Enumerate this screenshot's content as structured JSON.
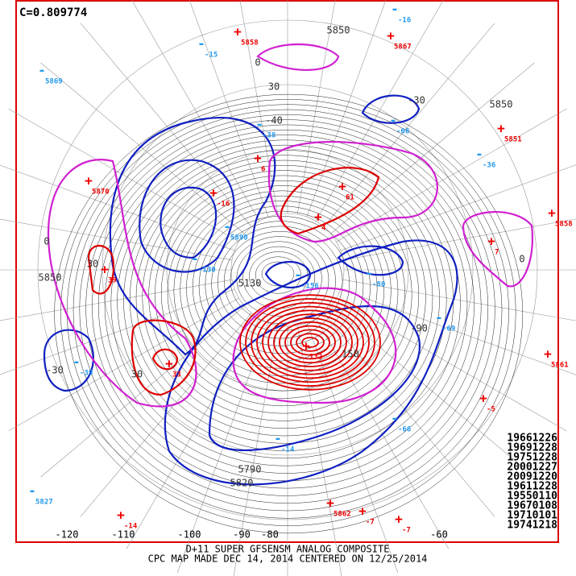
{
  "correlation": "C=0.809774",
  "analog_dates": [
    "19661226",
    "19691228",
    "19751228",
    "20001227",
    "20091220",
    "19611228",
    "19550110",
    "19670108",
    "19710101",
    "19741218"
  ],
  "longitudes": [
    "-120",
    "-110",
    "-100",
    "-90",
    "-80",
    "-60"
  ],
  "footer": [
    "D+11 SUPER GFSENSM ANALOG COMPOSITE",
    "CPC MAP MADE DEC 14, 2014 CENTERED ON 12/25/2014"
  ],
  "contour_labels": [
    "5850",
    "5850",
    "5850",
    "5790",
    "5820",
    "0",
    "0",
    "0",
    "30",
    "30",
    "30",
    "-30",
    "-30",
    "-40",
    "-90",
    "150",
    "5130"
  ],
  "markers": [
    {
      "sign": "+",
      "label": "5858"
    },
    {
      "sign": "+",
      "label": "5867"
    },
    {
      "sign": "+",
      "label": "5870"
    },
    {
      "sign": "+",
      "label": "5851"
    },
    {
      "sign": "+",
      "label": "6"
    },
    {
      "sign": "+",
      "label": "61"
    },
    {
      "sign": "+",
      "label": "4"
    },
    {
      "sign": "+",
      "label": "-16"
    },
    {
      "sign": "+",
      "label": "39"
    },
    {
      "sign": "+",
      "label": "33"
    },
    {
      "sign": "+",
      "label": "132"
    },
    {
      "sign": "+",
      "label": "7"
    },
    {
      "sign": "+",
      "label": "5858"
    },
    {
      "sign": "+",
      "label": "5861"
    },
    {
      "sign": "+",
      "label": "-5"
    },
    {
      "sign": "+",
      "label": "-14"
    },
    {
      "sign": "+",
      "label": "5862"
    },
    {
      "sign": "+",
      "label": "-7"
    },
    {
      "sign": "+",
      "label": "-7"
    },
    {
      "sign": "-",
      "label": "-16"
    },
    {
      "sign": "-",
      "label": "-15"
    },
    {
      "sign": "-",
      "label": "5869"
    },
    {
      "sign": "-",
      "label": "-38"
    },
    {
      "sign": "-",
      "label": "-36"
    },
    {
      "sign": "-",
      "label": "5890"
    },
    {
      "sign": "-",
      "label": "-130"
    },
    {
      "sign": "-",
      "label": "-156"
    },
    {
      "sign": "-",
      "label": "-80"
    },
    {
      "sign": "-",
      "label": "-69"
    },
    {
      "sign": "-",
      "label": "-39"
    },
    {
      "sign": "-",
      "label": "-66"
    },
    {
      "sign": "-",
      "label": "-14"
    },
    {
      "sign": "-",
      "label": "5827"
    },
    {
      "sign": "-",
      "label": "-66"
    }
  ]
}
